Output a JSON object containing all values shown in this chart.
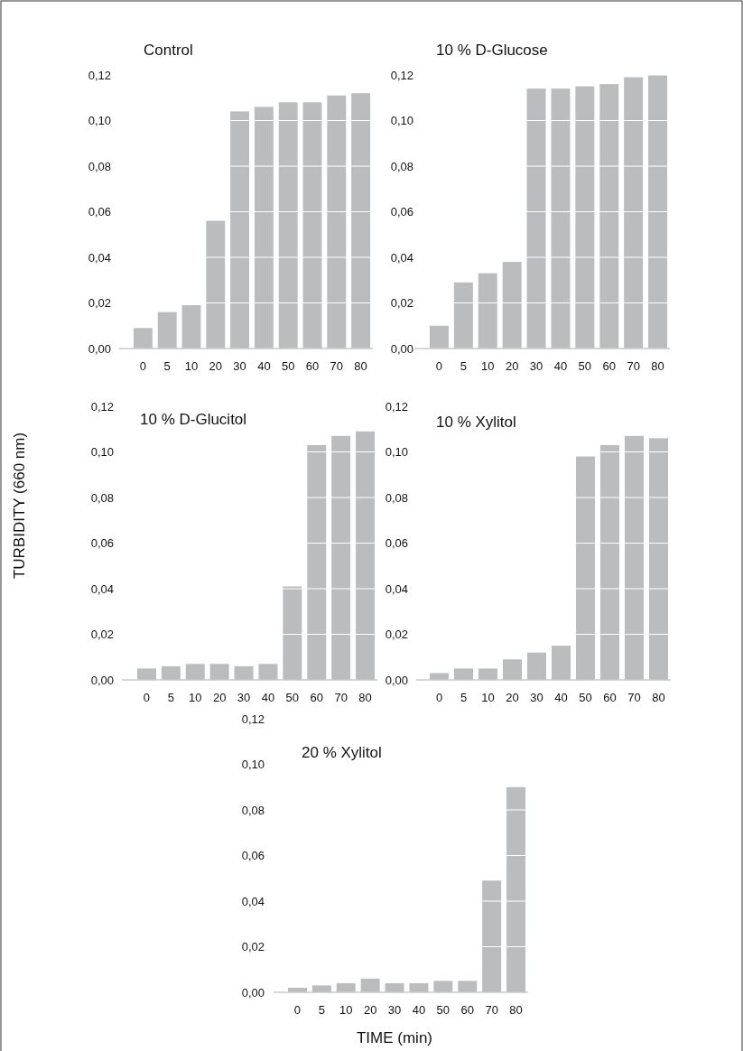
{
  "chart_data": [
    {
      "type": "bar",
      "title": "Control",
      "categories": [
        "0",
        "5",
        "10",
        "20",
        "30",
        "40",
        "50",
        "60",
        "70",
        "80"
      ],
      "values": [
        0.009,
        0.016,
        0.019,
        0.056,
        0.104,
        0.106,
        0.108,
        0.108,
        0.111,
        0.112
      ],
      "color": "#bbbcbe",
      "ylim": [
        0,
        0.12
      ],
      "yticks": [
        {
          "value": 0,
          "label": "0,00"
        },
        {
          "value": 0.02,
          "label": "0,02"
        },
        {
          "value": 0.04,
          "label": "0,04"
        },
        {
          "value": 0.06,
          "label": "0,06"
        },
        {
          "value": 0.08,
          "label": "0,08"
        },
        {
          "value": 0.1,
          "label": "0,10"
        },
        {
          "value": 0.12,
          "label": "0,12"
        }
      ],
      "grid": "y"
    },
    {
      "type": "bar",
      "title": "10 % D-Glucose",
      "categories": [
        "0",
        "5",
        "10",
        "20",
        "30",
        "40",
        "50",
        "60",
        "70",
        "80"
      ],
      "values": [
        0.01,
        0.029,
        0.033,
        0.038,
        0.114,
        0.114,
        0.115,
        0.116,
        0.119,
        0.12
      ],
      "color": "#bbbcbe",
      "ylim": [
        0,
        0.12
      ],
      "yticks": [
        {
          "value": 0,
          "label": "0,00"
        },
        {
          "value": 0.02,
          "label": "0,02"
        },
        {
          "value": 0.04,
          "label": "0,04"
        },
        {
          "value": 0.06,
          "label": "0,06"
        },
        {
          "value": 0.08,
          "label": "0,08"
        },
        {
          "value": 0.1,
          "label": "0,10"
        },
        {
          "value": 0.12,
          "label": "0,12"
        }
      ],
      "grid": "y"
    },
    {
      "type": "bar",
      "title": "10 % D-Glucitol",
      "ylabel": "TURBIDITY (660 nm)",
      "categories": [
        "0",
        "5",
        "10",
        "20",
        "30",
        "40",
        "50",
        "60",
        "70",
        "80"
      ],
      "values": [
        0.005,
        0.006,
        0.007,
        0.007,
        0.006,
        0.007,
        0.041,
        0.103,
        0.107,
        0.109
      ],
      "color": "#bbbcbe",
      "ylim": [
        0,
        0.12
      ],
      "yticks": [
        {
          "value": 0,
          "label": "0,00"
        },
        {
          "value": 0.02,
          "label": "0,02"
        },
        {
          "value": 0.04,
          "label": "0,04"
        },
        {
          "value": 0.06,
          "label": "0,06"
        },
        {
          "value": 0.08,
          "label": "0,08"
        },
        {
          "value": 0.1,
          "label": "0,10"
        },
        {
          "value": 0.12,
          "label": "0,12"
        }
      ],
      "grid": "y"
    },
    {
      "type": "bar",
      "title": "10 % Xylitol",
      "categories": [
        "0",
        "5",
        "10",
        "20",
        "30",
        "40",
        "50",
        "60",
        "70",
        "80"
      ],
      "values": [
        0.003,
        0.005,
        0.005,
        0.009,
        0.012,
        0.015,
        0.098,
        0.103,
        0.107,
        0.106
      ],
      "color": "#bbbcbe",
      "ylim": [
        0,
        0.12
      ],
      "yticks": [
        {
          "value": 0,
          "label": "0,00"
        },
        {
          "value": 0.02,
          "label": "0,02"
        },
        {
          "value": 0.04,
          "label": "0,04"
        },
        {
          "value": 0.06,
          "label": "0,06"
        },
        {
          "value": 0.08,
          "label": "0,08"
        },
        {
          "value": 0.1,
          "label": "0,10"
        },
        {
          "value": 0.12,
          "label": "0,12"
        }
      ],
      "grid": "y"
    },
    {
      "type": "bar",
      "title": "20 % Xylitol",
      "xlabel": "TIME (min)",
      "categories": [
        "0",
        "5",
        "10",
        "20",
        "30",
        "40",
        "50",
        "60",
        "70",
        "80"
      ],
      "values": [
        0.002,
        0.003,
        0.004,
        0.006,
        0.004,
        0.004,
        0.005,
        0.005,
        0.049,
        0.09
      ],
      "color": "#bbbcbe",
      "ylim": [
        0,
        0.12
      ],
      "yticks": [
        {
          "value": 0,
          "label": "0,00"
        },
        {
          "value": 0.02,
          "label": "0,02"
        },
        {
          "value": 0.04,
          "label": "0,04"
        },
        {
          "value": 0.06,
          "label": "0,06"
        },
        {
          "value": 0.08,
          "label": "0,08"
        },
        {
          "value": 0.1,
          "label": "0,10"
        },
        {
          "value": 0.12,
          "label": "0,12"
        }
      ],
      "grid": "y"
    }
  ]
}
